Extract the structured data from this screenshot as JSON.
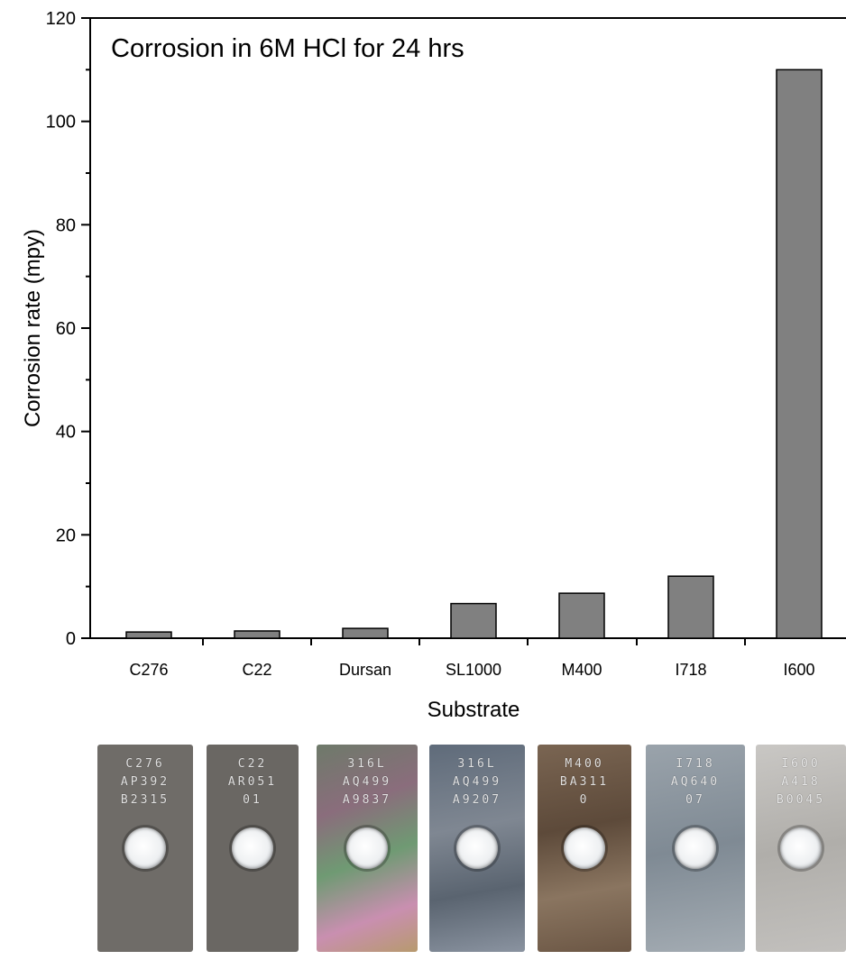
{
  "chart_data": {
    "type": "bar",
    "title": "Corrosion in 6M HCl for 24 hrs",
    "xlabel": "Substrate",
    "ylabel": "Corrosion rate (mpy)",
    "categories": [
      "C276",
      "C22",
      "Dursan",
      "SL1000",
      "M400",
      "I718",
      "I600"
    ],
    "values": [
      1.2,
      1.4,
      1.9,
      6.7,
      8.7,
      12.0,
      110.0
    ],
    "ylim": [
      0,
      120
    ],
    "yticks": [
      0,
      20,
      40,
      60,
      80,
      100,
      120
    ],
    "grid": false,
    "bar_color": "#808080"
  },
  "coupons": [
    {
      "name": "C276",
      "lines": [
        "C276",
        "AP392",
        "B2315"
      ],
      "color": "#6f6c68"
    },
    {
      "name": "C22",
      "lines": [
        "C22",
        "AR051",
        "01"
      ],
      "color": "#6a6763"
    },
    {
      "name": "Dursan",
      "lines": [
        "316L",
        "AQ499",
        "A9837"
      ],
      "color": "#7a6e72"
    },
    {
      "name": "SL1000",
      "lines": [
        "316L",
        "AQ499",
        "A9207"
      ],
      "color": "#6d7480"
    },
    {
      "name": "M400",
      "lines": [
        "M400",
        "BA311",
        "0"
      ],
      "color": "#6e5c48"
    },
    {
      "name": "I718",
      "lines": [
        "I718",
        "AQ640",
        "07"
      ],
      "color": "#8c949c"
    },
    {
      "name": "I600",
      "lines": [
        "I600",
        "A418",
        "B0045"
      ],
      "color": "#b7b5b2"
    }
  ]
}
